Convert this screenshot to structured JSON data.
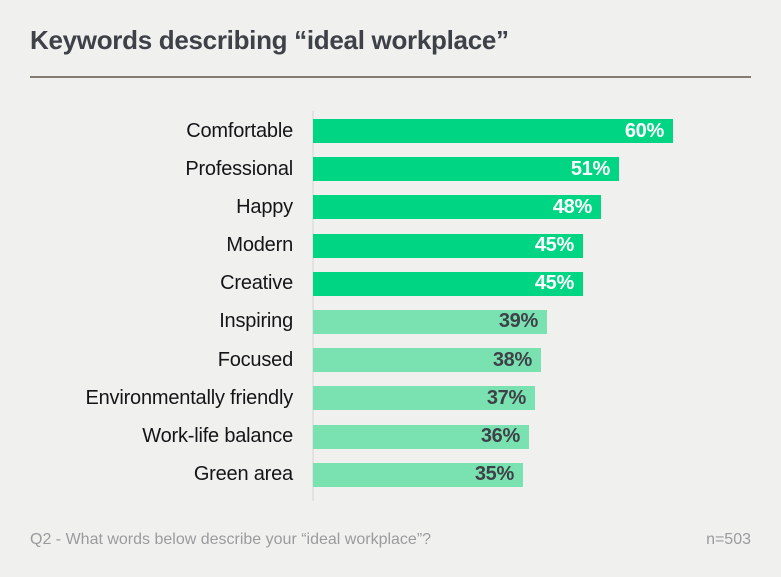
{
  "colors": {
    "background": "#f0f0ef",
    "title_text": "#3e4147",
    "divider": "#847c71",
    "axis_line": "#e2e2e0",
    "label_text": "#141517",
    "bar_primary": "#00d584",
    "bar_secondary": "#7ae2b1",
    "value_on_primary": "#ffffff",
    "value_on_secondary": "#3e4147",
    "footer_text": "#9b9b9e"
  },
  "chart_data": {
    "type": "bar",
    "orientation": "horizontal",
    "title": "Keywords describing “ideal workplace”",
    "categories": [
      "Comfortable",
      "Professional",
      "Happy",
      "Modern",
      "Creative",
      "Inspiring",
      "Focused",
      "Environmentally friendly",
      "Work-life balance",
      "Green area"
    ],
    "values": [
      60,
      51,
      48,
      45,
      45,
      39,
      38,
      37,
      36,
      35
    ],
    "value_labels": [
      "60%",
      "51%",
      "48%",
      "45%",
      "45%",
      "39%",
      "38%",
      "37%",
      "36%",
      "35%"
    ],
    "highlighted": [
      true,
      true,
      true,
      true,
      true,
      false,
      false,
      false,
      false,
      false
    ],
    "unit": "%",
    "xlim": [
      0,
      73
    ],
    "grid": false,
    "legend": false,
    "xlabel": "",
    "ylabel": "",
    "footnote": "Q2 - What words below describe your “ideal workplace”?",
    "sample_size_label": "n=503"
  }
}
